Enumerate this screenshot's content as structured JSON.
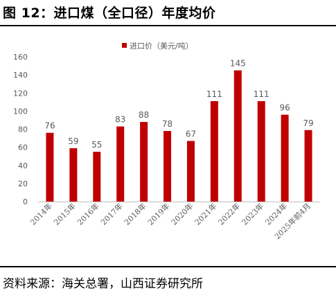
{
  "figure": {
    "title": "图 12：进口煤（全口径）年度均价",
    "source": "资料来源：海关总署，山西证券研究所"
  },
  "chart_data": {
    "type": "bar",
    "categories": [
      "2014年",
      "2015年",
      "2016年",
      "2017年",
      "2018年",
      "2019年",
      "2020年",
      "2021年",
      "2022年",
      "2023年",
      "2024年",
      "2025年前4月"
    ],
    "series": [
      {
        "name": "进口价（美元/吨）",
        "values": [
          76,
          59,
          55,
          83,
          88,
          78,
          67,
          111,
          145,
          111,
          96,
          79
        ]
      }
    ],
    "data_labels": [
      "76",
      "59",
      "55",
      "83",
      "88",
      "78",
      "67",
      "111",
      "145",
      "111",
      "96",
      "79"
    ],
    "yticks": [
      "0",
      "20",
      "40",
      "60",
      "80",
      "100",
      "120",
      "140",
      "160"
    ],
    "ylim": [
      0,
      160
    ],
    "legend_position": "top-center",
    "grid": false,
    "colors": {
      "bar": "#c00000",
      "axis": "#bfbfbf",
      "text": "#595959"
    }
  }
}
